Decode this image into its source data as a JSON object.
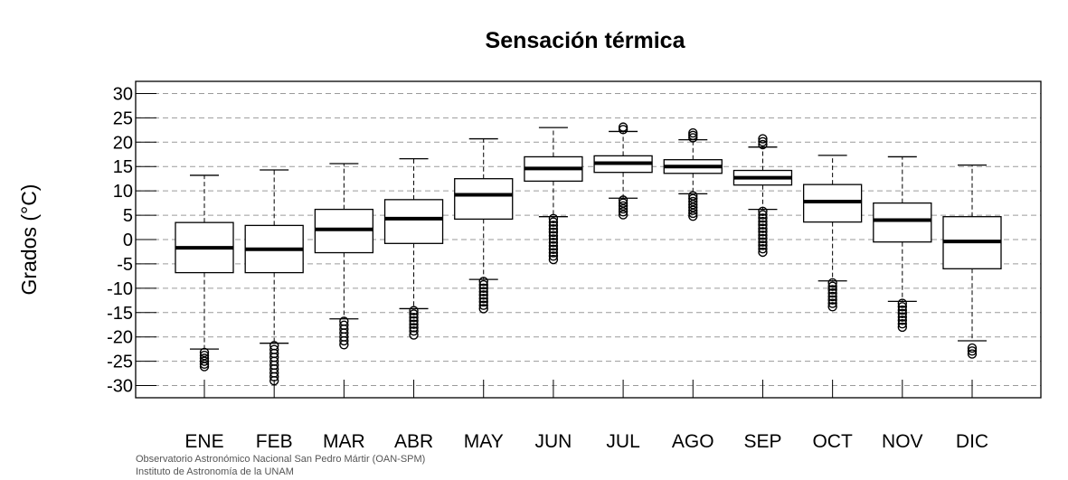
{
  "chart_data": {
    "type": "boxplot",
    "title": "Sensación térmica",
    "ylabel": "Grados (°C)",
    "xlabel": "",
    "ylim": [
      -32.5,
      32.5
    ],
    "yticks": [
      30,
      25,
      20,
      15,
      10,
      5,
      0,
      -5,
      -10,
      -15,
      -20,
      -25,
      -30
    ],
    "grid": true,
    "colors": {
      "box": "#000000",
      "grid": "#9a9a9a",
      "background": "#ffffff"
    },
    "categories": [
      "ENE",
      "FEB",
      "MAR",
      "ABR",
      "MAY",
      "JUN",
      "JUL",
      "AGO",
      "SEP",
      "OCT",
      "NOV",
      "DIC"
    ],
    "boxes": [
      {
        "label": "ENE",
        "whisker_low": -22.5,
        "q1": -6.8,
        "median": -1.7,
        "q3": 3.5,
        "whisker_high": 13.2,
        "outliers": [
          -23.2,
          -23.8,
          -24.4,
          -25.0,
          -25.6,
          -26.1
        ]
      },
      {
        "label": "FEB",
        "whisker_low": -21.3,
        "q1": -6.8,
        "median": -2.0,
        "q3": 2.9,
        "whisker_high": 14.3,
        "outliers": [
          -21.8,
          -22.6,
          -23.4,
          -24.2,
          -25.0,
          -25.8,
          -26.6,
          -27.4,
          -28.2,
          -29.0
        ]
      },
      {
        "label": "MAR",
        "whisker_low": -16.3,
        "q1": -2.7,
        "median": 2.1,
        "q3": 6.2,
        "whisker_high": 15.6,
        "outliers": [
          -16.8,
          -17.6,
          -18.4,
          -19.2,
          -20.0,
          -20.8,
          -21.6
        ]
      },
      {
        "label": "ABR",
        "whisker_low": -14.2,
        "q1": -0.8,
        "median": 4.3,
        "q3": 8.2,
        "whisker_high": 16.6,
        "outliers": [
          -14.6,
          -15.3,
          -16.0,
          -16.7,
          -17.4,
          -18.1,
          -18.8,
          -19.6
        ]
      },
      {
        "label": "MAY",
        "whisker_low": -8.2,
        "q1": 4.2,
        "median": 9.2,
        "q3": 12.5,
        "whisker_high": 20.7,
        "outliers": [
          -8.6,
          -9.3,
          -10.0,
          -10.7,
          -11.4,
          -12.1,
          -12.8,
          -13.5,
          -14.2
        ]
      },
      {
        "label": "JUN",
        "whisker_low": 4.7,
        "q1": 12.0,
        "median": 14.6,
        "q3": 17.0,
        "whisker_high": 23.0,
        "outliers": [
          4.3,
          3.6,
          2.9,
          2.2,
          1.5,
          0.8,
          0.1,
          -0.6,
          -1.3,
          -2.0,
          -2.7,
          -3.4,
          -4.1
        ]
      },
      {
        "label": "JUL",
        "whisker_low": 8.5,
        "q1": 13.8,
        "median": 15.7,
        "q3": 17.2,
        "whisker_high": 22.2,
        "outliers": [
          8.1,
          7.5,
          6.9,
          6.3,
          5.7,
          5.1,
          22.6,
          23.1
        ]
      },
      {
        "label": "AGO",
        "whisker_low": 9.4,
        "q1": 13.6,
        "median": 15.0,
        "q3": 16.4,
        "whisker_high": 20.5,
        "outliers": [
          9.0,
          8.4,
          7.8,
          7.2,
          6.6,
          6.0,
          5.4,
          4.8,
          20.9,
          21.4,
          21.9
        ]
      },
      {
        "label": "SEP",
        "whisker_low": 6.2,
        "q1": 11.2,
        "median": 12.7,
        "q3": 14.2,
        "whisker_high": 19.0,
        "outliers": [
          5.8,
          5.1,
          4.4,
          3.7,
          3.0,
          2.3,
          1.6,
          0.9,
          0.2,
          -0.5,
          -1.2,
          -1.9,
          -2.6,
          19.5,
          20.1,
          20.7
        ]
      },
      {
        "label": "OCT",
        "whisker_low": -8.5,
        "q1": 3.6,
        "median": 7.8,
        "q3": 11.3,
        "whisker_high": 17.3,
        "outliers": [
          -8.9,
          -9.6,
          -10.3,
          -11.0,
          -11.7,
          -12.4,
          -13.1,
          -13.8
        ]
      },
      {
        "label": "NOV",
        "whisker_low": -12.7,
        "q1": -0.5,
        "median": 4.0,
        "q3": 7.5,
        "whisker_high": 17.0,
        "outliers": [
          -13.1,
          -13.8,
          -14.5,
          -15.2,
          -15.9,
          -16.6,
          -17.3,
          -18.0
        ]
      },
      {
        "label": "DIC",
        "whisker_low": -20.8,
        "q1": -6.0,
        "median": -0.4,
        "q3": 4.7,
        "whisker_high": 15.3,
        "outliers": [
          -22.3,
          -22.9,
          -23.5
        ]
      }
    ]
  },
  "credits": {
    "line1": "Observatorio Astronómico Nacional San Pedro Mártir (OAN-SPM)",
    "line2": "Instituto de Astronomía de la UNAM"
  }
}
